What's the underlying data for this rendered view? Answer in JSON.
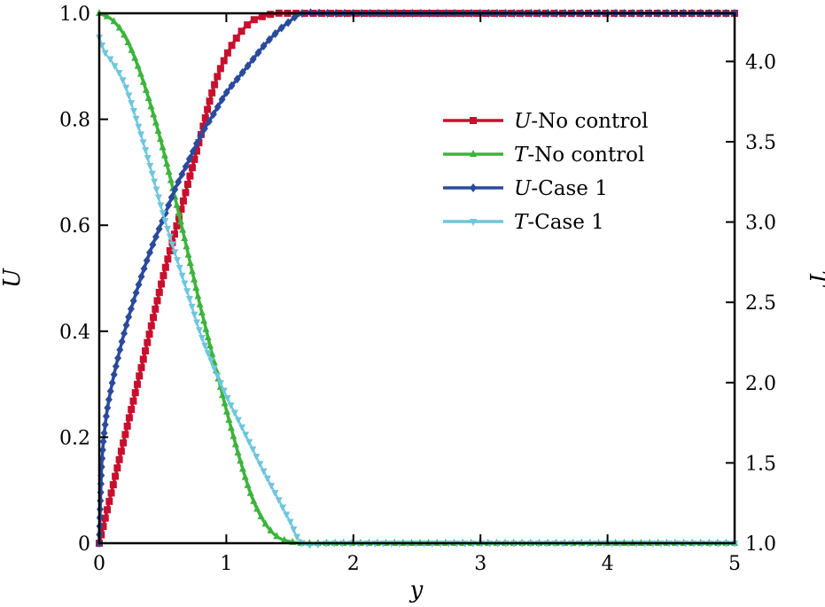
{
  "chart_data": {
    "type": "line",
    "title": "",
    "xlabel": "y",
    "ylabel_left": "U",
    "ylabel_right": "T",
    "xlim": [
      0,
      5
    ],
    "ylim_left": [
      0,
      1.0
    ],
    "ylim_right": [
      1.0,
      4.3
    ],
    "x_ticks": [
      0,
      1,
      2,
      3,
      4,
      5
    ],
    "x_tick_labels": [
      "0",
      "1",
      "2",
      "3",
      "4",
      "5"
    ],
    "y_left_ticks": [
      0,
      0.2,
      0.4,
      0.6,
      0.8,
      1.0
    ],
    "y_left_tick_labels": [
      "0",
      "0.2",
      "0.4",
      "0.6",
      "0.8",
      "1.0"
    ],
    "y_right_ticks": [
      1.0,
      1.5,
      2.0,
      2.5,
      3.0,
      3.5,
      4.0
    ],
    "y_right_tick_labels": [
      "1.0",
      "1.5",
      "2.0",
      "2.5",
      "3.0",
      "3.5",
      "4.0"
    ],
    "grid": false,
    "legend_position": "upper-right",
    "series": [
      {
        "name": "U-No control",
        "legend_italic": "U",
        "legend_rest": "-No control",
        "axis": "left",
        "color": "#c8102e",
        "marker": "square",
        "x": [
          0,
          0.1,
          0.2,
          0.3,
          0.4,
          0.5,
          0.6,
          0.7,
          0.8,
          0.9,
          1.0,
          1.1,
          1.2,
          1.3,
          1.4,
          1.5,
          1.6,
          1.8,
          2.0,
          2.5,
          3.0,
          3.5,
          4.0,
          4.5,
          5.0
        ],
        "y": [
          0,
          0.1,
          0.2,
          0.3,
          0.4,
          0.5,
          0.59,
          0.68,
          0.77,
          0.86,
          0.92,
          0.96,
          0.985,
          0.995,
          1.0,
          1.0,
          1.0,
          1.0,
          1.0,
          1.0,
          1.0,
          1.0,
          1.0,
          1.0,
          1.0
        ]
      },
      {
        "name": "T-No control",
        "legend_italic": "T",
        "legend_rest": "-No control",
        "axis": "right",
        "color": "#3cb43c",
        "marker": "triangle-up",
        "x": [
          0,
          0.1,
          0.2,
          0.3,
          0.4,
          0.5,
          0.6,
          0.7,
          0.8,
          0.9,
          1.0,
          1.1,
          1.2,
          1.3,
          1.4,
          1.5,
          1.6,
          1.8,
          2.0,
          2.5,
          3.0,
          3.5,
          4.0,
          4.5,
          5.0
        ],
        "y": [
          4.3,
          4.26,
          4.16,
          3.98,
          3.74,
          3.46,
          3.14,
          2.8,
          2.46,
          2.14,
          1.83,
          1.54,
          1.29,
          1.13,
          1.04,
          1.01,
          1.0,
          1.0,
          1.0,
          1.0,
          1.0,
          1.0,
          1.0,
          1.0,
          1.0
        ]
      },
      {
        "name": "U-Case 1",
        "legend_italic": "U",
        "legend_rest": "-Case 1",
        "axis": "left",
        "color": "#2a4a9c",
        "marker": "diamond",
        "x": [
          0,
          0.02,
          0.05,
          0.1,
          0.2,
          0.3,
          0.4,
          0.5,
          0.6,
          0.7,
          0.8,
          0.9,
          1.0,
          1.1,
          1.2,
          1.3,
          1.4,
          1.5,
          1.6,
          1.8,
          2.0,
          2.5,
          3.0,
          3.5,
          4.0,
          4.5,
          5.0
        ],
        "y": [
          0,
          0.15,
          0.23,
          0.3,
          0.4,
          0.48,
          0.55,
          0.61,
          0.67,
          0.72,
          0.77,
          0.81,
          0.85,
          0.88,
          0.91,
          0.94,
          0.965,
          0.985,
          1.0,
          1.0,
          1.0,
          1.0,
          1.0,
          1.0,
          1.0,
          1.0,
          1.0
        ]
      },
      {
        "name": "T-Case 1",
        "legend_italic": "T",
        "legend_rest": "-Case 1",
        "axis": "right",
        "color": "#6ec6dc",
        "marker": "triangle-down",
        "x": [
          0,
          0.05,
          0.1,
          0.2,
          0.3,
          0.4,
          0.5,
          0.6,
          0.7,
          0.8,
          0.9,
          1.0,
          1.1,
          1.2,
          1.3,
          1.4,
          1.5,
          1.6,
          1.8,
          2.0,
          2.5,
          3.0,
          3.5,
          4.0,
          4.5,
          5.0
        ],
        "y": [
          4.15,
          4.05,
          4.0,
          3.86,
          3.62,
          3.35,
          3.06,
          2.8,
          2.55,
          2.3,
          2.1,
          1.92,
          1.76,
          1.6,
          1.44,
          1.29,
          1.14,
          1.0,
          1.0,
          1.0,
          1.0,
          1.0,
          1.0,
          1.0,
          1.0,
          1.0
        ]
      }
    ]
  }
}
